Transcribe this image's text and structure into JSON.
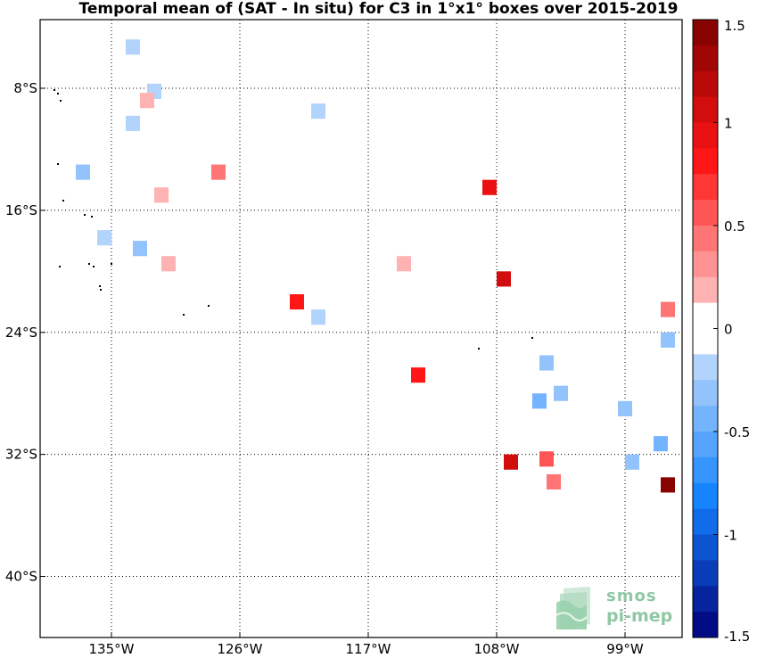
{
  "title": "Temporal mean of (SAT - In situ) for C3 in 1°x1° boxes over 2015-2019",
  "map": {
    "lon_range": [
      -140,
      -95
    ],
    "lat_range": [
      -44,
      -3.5
    ],
    "lon_ticks": [
      {
        "value": -135,
        "label": "135°W"
      },
      {
        "value": -126,
        "label": "126°W"
      },
      {
        "value": -117,
        "label": "117°W"
      },
      {
        "value": -108,
        "label": "108°W"
      },
      {
        "value": -99,
        "label": "99°W"
      }
    ],
    "lat_ticks": [
      {
        "value": -8,
        "label": "8°S"
      },
      {
        "value": -16,
        "label": "16°S"
      },
      {
        "value": -24,
        "label": "24°S"
      },
      {
        "value": -32,
        "label": "32°S"
      },
      {
        "value": -40,
        "label": "40°S"
      }
    ],
    "grid": "dotted"
  },
  "chart_data": {
    "type": "heatmap",
    "title": "Temporal mean of (SAT - In situ) for C3 in 1°x1° boxes over 2015-2019",
    "xlabel": "",
    "ylabel": "",
    "xlim": [
      -140,
      -95
    ],
    "ylim": [
      -44,
      -3.5
    ],
    "cell_size_deg": 1,
    "colorbar": {
      "range": [
        -1.5,
        1.5
      ],
      "ticks": [
        {
          "value": 1.5,
          "label": "1.5"
        },
        {
          "value": 1,
          "label": "1"
        },
        {
          "value": 0.5,
          "label": "0.5"
        },
        {
          "value": 0,
          "label": "0"
        },
        {
          "value": -0.5,
          "label": "-0.5"
        },
        {
          "value": -1,
          "label": "-1"
        },
        {
          "value": -1.5,
          "label": "-1.5"
        }
      ],
      "levels": 24
    },
    "points": [
      {
        "lon": -133.5,
        "lat": -5.3,
        "value": -0.25
      },
      {
        "lon": -131.5,
        "lat": -15.0,
        "value": 0.2
      },
      {
        "lon": -132.0,
        "lat": -8.2,
        "value": -0.2
      },
      {
        "lon": -132.5,
        "lat": -8.8,
        "value": 0.2
      },
      {
        "lon": -120.5,
        "lat": -9.5,
        "value": -0.15
      },
      {
        "lon": -133.5,
        "lat": -10.3,
        "value": -0.15
      },
      {
        "lon": -127.5,
        "lat": -13.5,
        "value": 0.4
      },
      {
        "lon": -137.0,
        "lat": -13.5,
        "value": -0.3
      },
      {
        "lon": -135.5,
        "lat": -17.8,
        "value": -0.15
      },
      {
        "lon": -133.0,
        "lat": -18.5,
        "value": -0.35
      },
      {
        "lon": -131.0,
        "lat": -19.5,
        "value": 0.15
      },
      {
        "lon": -119.0,
        "lat": -20.5,
        "value": 0.1
      },
      {
        "lon": -114.5,
        "lat": -19.5,
        "value": 0.2
      },
      {
        "lon": -122.0,
        "lat": -22.0,
        "value": 0.85
      },
      {
        "lon": -120.5,
        "lat": -23.0,
        "value": -0.2
      },
      {
        "lon": -113.5,
        "lat": -26.8,
        "value": 0.8
      },
      {
        "lon": -107.5,
        "lat": -20.5,
        "value": 1.0
      },
      {
        "lon": -108.5,
        "lat": -14.5,
        "value": 0.95
      },
      {
        "lon": -105.0,
        "lat": -28.5,
        "value": -0.4
      },
      {
        "lon": -104.0,
        "lat": -33.8,
        "value": 0.4
      },
      {
        "lon": -107.0,
        "lat": -32.5,
        "value": 1.0
      },
      {
        "lon": -103.5,
        "lat": -28.0,
        "value": -0.3
      },
      {
        "lon": -98.5,
        "lat": -32.5,
        "value": -0.35
      },
      {
        "lon": -96.5,
        "lat": -31.3,
        "value": -0.5
      },
      {
        "lon": -96.0,
        "lat": -34.0,
        "value": 1.4
      },
      {
        "lon": -104.5,
        "lat": -32.3,
        "value": 0.6
      },
      {
        "lon": -99.0,
        "lat": -29.0,
        "value": -0.3
      },
      {
        "lon": -104.5,
        "lat": -26.0,
        "value": -0.3
      },
      {
        "lon": -96.0,
        "lat": -24.5,
        "value": -0.3
      },
      {
        "lon": -96.0,
        "lat": -22.5,
        "value": 0.45
      }
    ]
  },
  "logo": {
    "line1": "smos",
    "line2": "pi-mep"
  }
}
